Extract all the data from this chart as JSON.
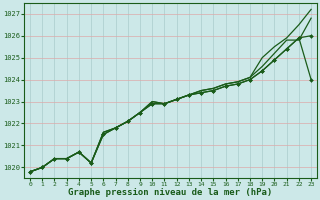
{
  "title": "Graphe pression niveau de la mer (hPa)",
  "bg_color": "#cce8e8",
  "grid_color": "#aacccc",
  "line_color": "#1a5c1a",
  "xlim": [
    -0.5,
    23.5
  ],
  "ylim": [
    1019.5,
    1027.5
  ],
  "yticks": [
    1020,
    1021,
    1022,
    1023,
    1024,
    1025,
    1026,
    1027
  ],
  "xticks": [
    0,
    1,
    2,
    3,
    4,
    5,
    6,
    7,
    8,
    9,
    10,
    11,
    12,
    13,
    14,
    15,
    16,
    17,
    18,
    19,
    20,
    21,
    22,
    23
  ],
  "series": [
    {
      "y": [
        1019.8,
        1020.0,
        1020.4,
        1020.4,
        1020.7,
        1020.2,
        1021.5,
        1021.8,
        1022.1,
        1022.5,
        1022.9,
        1022.9,
        1023.1,
        1023.3,
        1023.4,
        1023.5,
        1023.7,
        1023.8,
        1024.0,
        1024.4,
        1024.9,
        1025.4,
        1025.9,
        1024.0
      ],
      "marker": true,
      "linewidth": 0.9
    },
    {
      "y": [
        1019.8,
        1020.0,
        1020.4,
        1020.4,
        1020.7,
        1020.2,
        1021.6,
        1021.8,
        1022.1,
        1022.5,
        1023.0,
        1022.9,
        1023.1,
        1023.3,
        1023.5,
        1023.6,
        1023.8,
        1023.9,
        1024.1,
        1024.6,
        1025.2,
        1025.8,
        1025.8,
        1026.8
      ],
      "marker": false,
      "linewidth": 0.9
    },
    {
      "y": [
        1019.8,
        1020.0,
        1020.4,
        1020.4,
        1020.7,
        1020.2,
        1021.6,
        1021.8,
        1022.1,
        1022.5,
        1023.0,
        1022.9,
        1023.1,
        1023.3,
        1023.5,
        1023.6,
        1023.8,
        1023.9,
        1024.1,
        1025.0,
        1025.5,
        1025.9,
        1026.5,
        1027.2
      ],
      "marker": false,
      "linewidth": 0.9
    },
    {
      "y": [
        1019.8,
        1020.0,
        1020.4,
        1020.4,
        1020.7,
        1020.2,
        1021.5,
        1021.8,
        1022.1,
        1022.5,
        1022.9,
        1022.9,
        1023.1,
        1023.3,
        1023.4,
        1023.5,
        1023.7,
        1023.8,
        1024.0,
        1024.4,
        1024.9,
        1025.4,
        1025.9,
        1026.0
      ],
      "marker": true,
      "linewidth": 0.9
    }
  ]
}
